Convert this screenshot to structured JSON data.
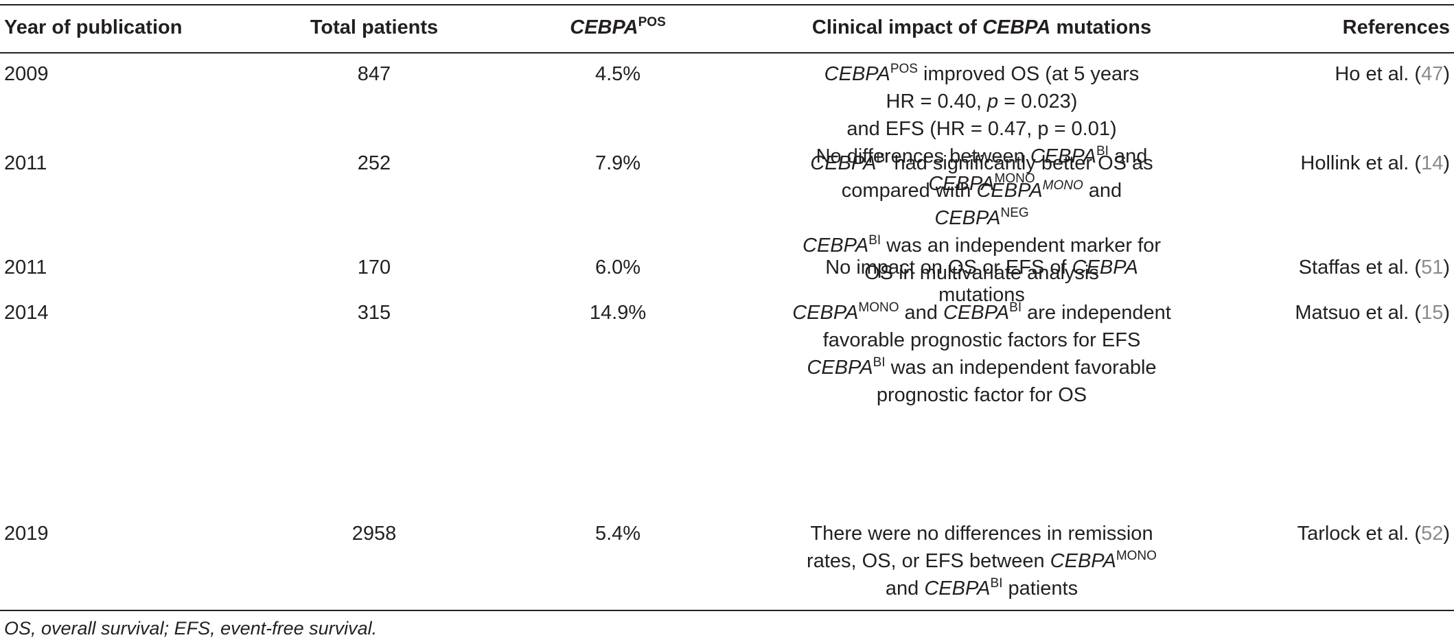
{
  "header": {
    "year": "Year of publication",
    "total": "Total patients",
    "cebpa_pos_gene": "CEBPA",
    "cebpa_pos_sup": "POS",
    "impact_pre": "Clinical impact of ",
    "impact_gene": "CEBPA",
    "impact_post": " mutations",
    "references": "References"
  },
  "rows": [
    {
      "year": "2009",
      "total": "847",
      "pct": "4.5%",
      "ref_text": "Ho et al. (",
      "ref_num": "47",
      "ref_close": ")",
      "l1_gene": "CEBPA",
      "l1_sup": "POS",
      "l1_text": " improved OS (at 5 years",
      "l2_text": "HR = 0.40, ",
      "l2_p": "p",
      "l2_text2": " = 0.023)",
      "l3_text": "and EFS (HR = 0.47, p = 0.01)",
      "l4_text": "No differences between ",
      "l4_gene": "CEBPA",
      "l4_sup": "BI",
      "l4_text2": " and",
      "l5_gene": "CEBPA",
      "l5_sup": "MONO"
    },
    {
      "year": "2011",
      "total": "252",
      "pct": "7.9%",
      "ref_text": "Hollink et al. (",
      "ref_num": "14",
      "ref_close": ")",
      "l1_gene": "CEBPA",
      "l1_sup": "BI",
      "l1_text": " had significantly better OS as",
      "l2_text": "compared with ",
      "l2_gene": "CEBPA",
      "l2_sup": "MONO",
      "l2_text2": " and",
      "l3_gene": "CEBPA",
      "l3_sup": "NEG",
      "l4_gene": "CEBPA",
      "l4_sup": "BI",
      "l4_text": " was an independent marker for",
      "l5_text": "OS in multivariate analysis"
    },
    {
      "year": "2011",
      "total": "170",
      "pct": "6.0%",
      "ref_text": "Staffas et al. (",
      "ref_num": "51",
      "ref_close": ")",
      "l1_text": "No impact on OS or EFS of ",
      "l1_gene": "CEBPA",
      "l2_text": "mutations"
    },
    {
      "year": "2014",
      "total": "315",
      "pct": "14.9%",
      "ref_text": "Matsuo et al. (",
      "ref_num": "15",
      "ref_close": ")",
      "l1_gene": "CEBPA",
      "l1_sup": "MONO",
      "l1_text": " and ",
      "l1_gene2": "CEBPA",
      "l1_sup2": "BI",
      "l1_text2": " are independent",
      "l2_text": "favorable prognostic factors for EFS",
      "l3_gene": "CEBPA",
      "l3_sup": "BI",
      "l3_text": " was an independent favorable",
      "l4_text": "prognostic factor for OS"
    },
    {
      "year": "2019",
      "total": "2958",
      "pct": "5.4%",
      "ref_text": "Tarlock et al. (",
      "ref_num": "52",
      "ref_close": ")",
      "l1_text": "There were no differences in remission",
      "l2_text": "rates, OS, or EFS between ",
      "l2_gene": "CEBPA",
      "l2_sup": "MONO",
      "l3_text": "and ",
      "l3_gene": "CEBPA",
      "l3_sup": "BI",
      "l3_text2": " patients"
    }
  ],
  "footnote": "OS, overall survival; EFS, event-free survival."
}
